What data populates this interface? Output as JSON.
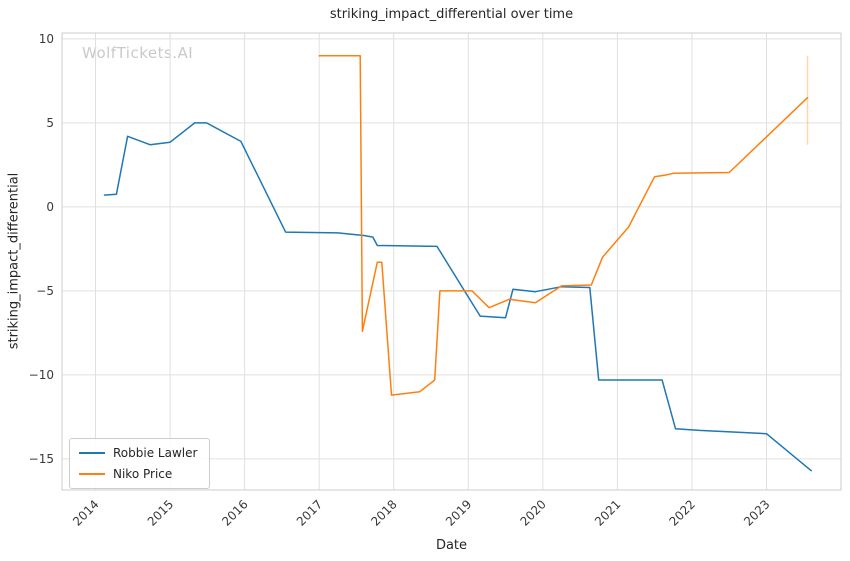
{
  "figure": {
    "watermark": "WolfTickets.AI"
  },
  "chart_data": {
    "type": "line",
    "title": "striking_impact_differential over time",
    "xlabel": "Date",
    "ylabel": "striking_impact_differential",
    "watermark": "WolfTickets.AI",
    "xlim": [
      2013.55,
      2024.0
    ],
    "ylim": [
      -16.85,
      10.35
    ],
    "xticks": [
      2014,
      2015,
      2016,
      2017,
      2018,
      2019,
      2020,
      2021,
      2022,
      2023
    ],
    "yticks": [
      10,
      5,
      0,
      -5,
      -10,
      -15
    ],
    "grid": true,
    "legend": {
      "position": "lower left",
      "entries": [
        "Robbie Lawler",
        "Niko Price"
      ]
    },
    "colors": {
      "blue": "#1f77b4",
      "orange": "#ff7f0e",
      "grid": "#e0e0e0",
      "spine": "#cccccc",
      "text": "#3a3a3a"
    },
    "series": [
      {
        "name": "Robbie Lawler",
        "color": "#1f77b4",
        "points": [
          [
            2014.12,
            0.7
          ],
          [
            2014.28,
            0.75
          ],
          [
            2014.43,
            4.2
          ],
          [
            2014.73,
            3.7
          ],
          [
            2015.0,
            3.85
          ],
          [
            2015.33,
            5.0
          ],
          [
            2015.49,
            5.0
          ],
          [
            2015.95,
            3.9
          ],
          [
            2016.55,
            -1.5
          ],
          [
            2017.25,
            -1.55
          ],
          [
            2017.6,
            -1.7
          ],
          [
            2017.72,
            -1.8
          ],
          [
            2017.78,
            -2.3
          ],
          [
            2018.58,
            -2.35
          ],
          [
            2018.95,
            -5.0
          ],
          [
            2019.16,
            -6.5
          ],
          [
            2019.5,
            -6.6
          ],
          [
            2019.6,
            -4.9
          ],
          [
            2019.9,
            -5.05
          ],
          [
            2020.25,
            -4.75
          ],
          [
            2020.63,
            -4.8
          ],
          [
            2020.75,
            -10.3
          ],
          [
            2021.6,
            -10.3
          ],
          [
            2021.78,
            -13.2
          ],
          [
            2022.1,
            -13.3
          ],
          [
            2022.55,
            -13.4
          ],
          [
            2023.0,
            -13.5
          ],
          [
            2023.6,
            -15.7
          ]
        ]
      },
      {
        "name": "Niko Price",
        "color": "#ff7f0e",
        "points": [
          [
            2017.0,
            9.0
          ],
          [
            2017.55,
            9.0
          ],
          [
            2017.58,
            -7.4
          ],
          [
            2017.78,
            -3.3
          ],
          [
            2017.84,
            -3.3
          ],
          [
            2017.97,
            -11.2
          ],
          [
            2018.35,
            -11.0
          ],
          [
            2018.55,
            -10.3
          ],
          [
            2018.62,
            -5.0
          ],
          [
            2019.05,
            -5.0
          ],
          [
            2019.28,
            -6.0
          ],
          [
            2019.55,
            -5.5
          ],
          [
            2019.9,
            -5.7
          ],
          [
            2020.25,
            -4.7
          ],
          [
            2020.65,
            -4.65
          ],
          [
            2020.8,
            -3.0
          ],
          [
            2021.15,
            -1.2
          ],
          [
            2021.5,
            1.8
          ],
          [
            2021.65,
            1.9
          ],
          [
            2021.75,
            2.0
          ],
          [
            2022.5,
            2.05
          ],
          [
            2023.55,
            6.5
          ]
        ]
      }
    ],
    "annotations": [
      {
        "type": "vline-segment",
        "x": 2023.55,
        "y1": 3.7,
        "y2": 9.0,
        "color": "#ffbb78",
        "opacity": 0.6
      }
    ]
  }
}
